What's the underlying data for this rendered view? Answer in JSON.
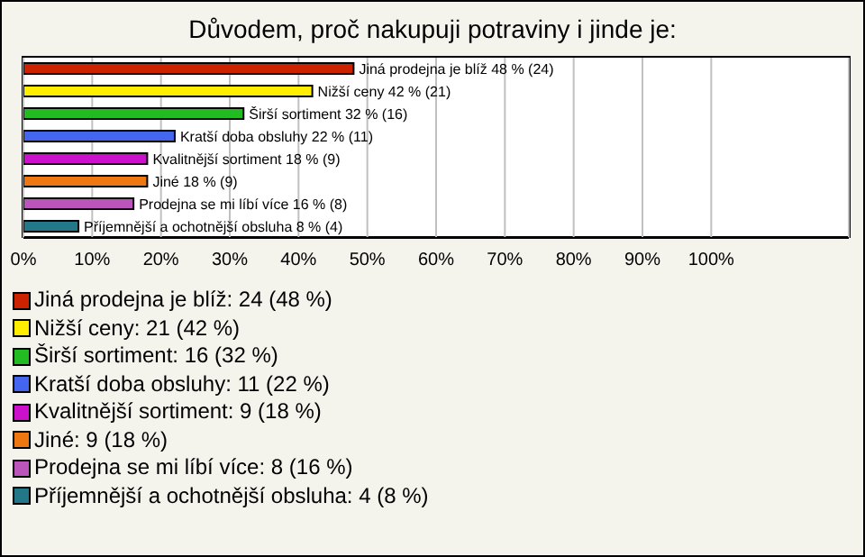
{
  "chart_data": {
    "type": "bar",
    "orientation": "horizontal",
    "stacked": true,
    "title": "Důvodem, proč nakupuji potraviny i jinde je:",
    "categories": [
      null,
      null,
      null,
      null,
      null,
      null,
      null,
      null
    ],
    "xlim": [
      0,
      120
    ],
    "xticks": [
      {
        "value": 0,
        "label": "0%"
      },
      {
        "value": 10,
        "label": "10%"
      },
      {
        "value": 20,
        "label": "20%"
      },
      {
        "value": 30,
        "label": "30%"
      },
      {
        "value": 40,
        "label": "40%"
      },
      {
        "value": 50,
        "label": "50%"
      },
      {
        "value": 60,
        "label": "60%"
      },
      {
        "value": 70,
        "label": "70%"
      },
      {
        "value": 80,
        "label": "80%"
      },
      {
        "value": 90,
        "label": "90%"
      },
      {
        "value": 100,
        "label": "100%"
      }
    ],
    "grid": "x",
    "legend": "bottom",
    "series": [
      {
        "name": "Jiná prodejna je blíž: 24 (48 %)",
        "color": "#cc2200",
        "values": [
          48,
          null,
          null,
          null,
          null,
          null,
          null,
          null
        ],
        "value_labels": [
          "Jiná prodejna je blíž 48 % (24)",
          null,
          null,
          null,
          null,
          null,
          null,
          null
        ]
      },
      {
        "name": "Nižší ceny: 21 (42 %)",
        "color": "#ffee00",
        "values": [
          null,
          42,
          null,
          null,
          null,
          null,
          null,
          null
        ],
        "value_labels": [
          null,
          "Nižší ceny 42 % (21)",
          null,
          null,
          null,
          null,
          null,
          null
        ]
      },
      {
        "name": "Širší sortiment: 16 (32 %)",
        "color": "#22bb22",
        "values": [
          null,
          null,
          32,
          null,
          null,
          null,
          null,
          null
        ],
        "value_labels": [
          null,
          null,
          "Širší sortiment 32 % (16)",
          null,
          null,
          null,
          null,
          null
        ]
      },
      {
        "name": "Kratší doba obsluhy: 11 (22 %)",
        "color": "#4466ee",
        "values": [
          null,
          null,
          null,
          22,
          null,
          null,
          null,
          null
        ],
        "value_labels": [
          null,
          null,
          null,
          "Kratší doba obsluhy 22 % (11)",
          null,
          null,
          null,
          null
        ]
      },
      {
        "name": "Kvalitnější sortiment: 9 (18 %)",
        "color": "#cc11cc",
        "values": [
          null,
          null,
          null,
          null,
          18,
          null,
          null,
          null
        ],
        "value_labels": [
          null,
          null,
          null,
          null,
          "Kvalitnější sortiment 18 % (9)",
          null,
          null,
          null
        ]
      },
      {
        "name": "Jiné: 9 (18 %)",
        "color": "#ee7711",
        "values": [
          null,
          null,
          null,
          null,
          null,
          18,
          null,
          null
        ],
        "value_labels": [
          null,
          null,
          null,
          null,
          null,
          "Jiné 18 % (9)",
          null,
          null
        ]
      },
      {
        "name": "Prodejna se mi líbí více: 8 (16 %)",
        "color": "#bb55bb",
        "values": [
          null,
          null,
          null,
          null,
          null,
          null,
          16,
          null
        ],
        "value_labels": [
          null,
          null,
          null,
          null,
          null,
          null,
          "Prodejna se mi líbí více 16 % (8)",
          null
        ]
      },
      {
        "name": "Příjemnější a ochotnější obsluha: 4 (8 %)",
        "color": "#227788",
        "values": [
          null,
          null,
          null,
          null,
          null,
          null,
          null,
          8
        ],
        "value_labels": [
          null,
          null,
          null,
          null,
          null,
          null,
          null,
          "Příjemnější a ochotnější obsluha 8 % (4)"
        ]
      }
    ]
  }
}
